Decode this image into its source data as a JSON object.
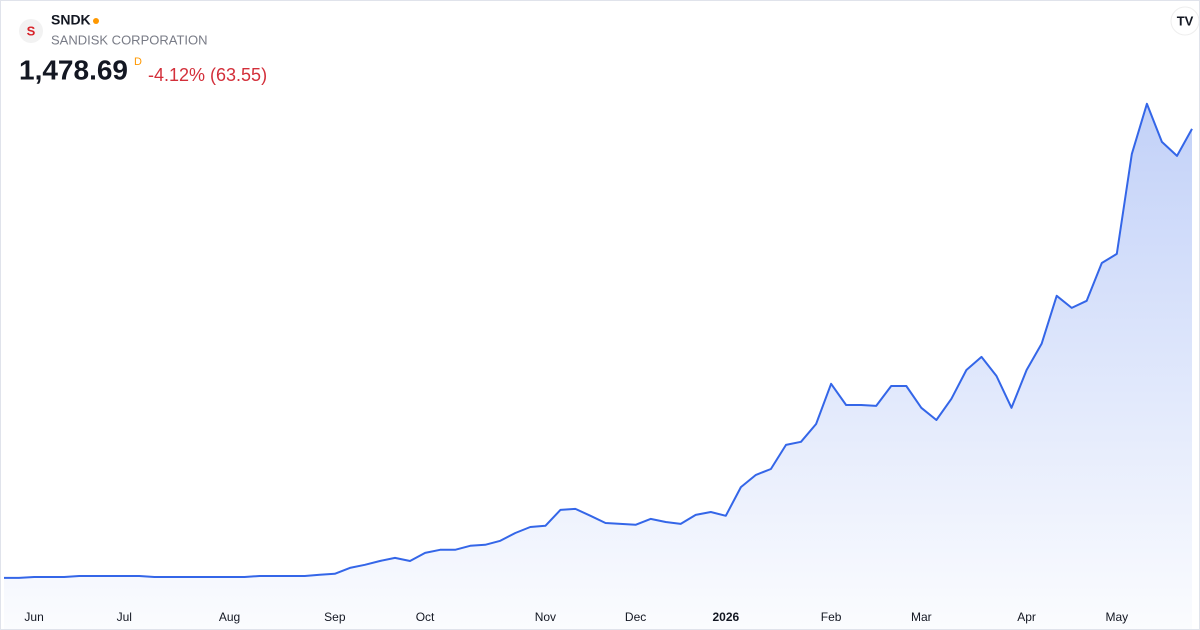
{
  "chart_data": {
    "type": "area",
    "symbol": "SNDK",
    "company": "SANDISK CORPORATION",
    "price": "1,478.69",
    "interval": "D",
    "change": "-4.12% (63.55)",
    "color": "#3466e8",
    "categories": [
      null,
      null,
      "Jun",
      null,
      null,
      null,
      null,
      null,
      "Jul",
      null,
      null,
      null,
      null,
      null,
      null,
      "Aug",
      null,
      null,
      null,
      null,
      null,
      null,
      "Sep",
      null,
      null,
      null,
      null,
      null,
      "Oct",
      null,
      null,
      null,
      null,
      null,
      null,
      null,
      "Nov",
      null,
      null,
      null,
      null,
      null,
      "Dec",
      null,
      null,
      null,
      null,
      null,
      "2026",
      null,
      null,
      null,
      null,
      null,
      null,
      "Feb",
      null,
      null,
      null,
      null,
      null,
      "Mar",
      null,
      null,
      null,
      null,
      null,
      null,
      "Apr",
      null,
      null,
      null,
      null,
      null,
      "May",
      null,
      null,
      null,
      null,
      null
    ],
    "values": [
      40,
      40,
      43,
      43,
      43,
      46,
      46,
      46,
      46,
      46,
      43,
      43,
      43,
      43,
      43,
      43,
      43,
      46,
      46,
      46,
      46,
      50,
      53,
      72,
      82,
      94,
      104,
      94,
      120,
      130,
      130,
      143,
      146,
      159,
      184,
      203,
      207,
      258,
      261,
      239,
      216,
      213,
      210,
      229,
      219,
      213,
      242,
      251,
      239,
      331,
      370,
      389,
      466,
      476,
      533,
      662,
      594,
      594,
      591,
      655,
      655,
      585,
      546,
      614,
      706,
      748,
      687,
      585,
      706,
      790,
      944,
      905,
      928,
      1049,
      1078,
      1398,
      1559,
      1437,
      1392,
      1478.69
    ],
    "ylim": [
      -34,
      1568
    ]
  }
}
